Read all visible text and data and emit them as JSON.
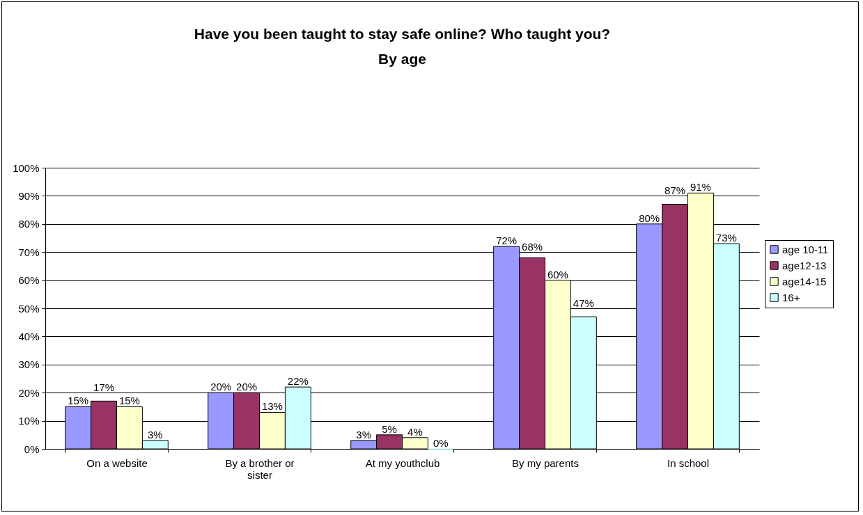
{
  "chart_data": {
    "type": "bar",
    "title": [
      "Have you been taught to stay safe online? Who taught you?",
      "By age"
    ],
    "categories": [
      "On a website",
      "By a brother or sister",
      "At my youthclub",
      "By my parents",
      "In school"
    ],
    "series": [
      {
        "name": "age 10-11",
        "color": "#9999ff",
        "values": [
          15,
          20,
          3,
          72,
          80
        ],
        "value_labels": [
          "15%",
          "20%",
          "3%",
          "72%",
          "80%"
        ]
      },
      {
        "name": "age12-13",
        "color": "#993366",
        "values": [
          17,
          20,
          5,
          68,
          87
        ],
        "value_labels": [
          "17%",
          "20%",
          "5%",
          "68%",
          "87%"
        ]
      },
      {
        "name": "age14-15",
        "color": "#ffffcc",
        "values": [
          15,
          13,
          4,
          60,
          91
        ],
        "value_labels": [
          "15%",
          "13%",
          "4%",
          "60%",
          "91%"
        ]
      },
      {
        "name": "16+",
        "color": "#ccffff",
        "values": [
          3,
          22,
          0,
          47,
          73
        ],
        "value_labels": [
          "3%",
          "22%",
          "0%",
          "47%",
          "73%"
        ]
      }
    ],
    "ylim": [
      0,
      100
    ],
    "yticks": [
      {
        "value": 0,
        "label": "0%"
      },
      {
        "value": 10,
        "label": "10%"
      },
      {
        "value": 20,
        "label": "20%"
      },
      {
        "value": 30,
        "label": "30%"
      },
      {
        "value": 40,
        "label": "40%"
      },
      {
        "value": 50,
        "label": "50%"
      },
      {
        "value": 60,
        "label": "60%"
      },
      {
        "value": 70,
        "label": "70%"
      },
      {
        "value": 80,
        "label": "80%"
      },
      {
        "value": 90,
        "label": "90%"
      },
      {
        "value": 100,
        "label": "100%"
      }
    ],
    "grid": "y",
    "legend": "right"
  }
}
